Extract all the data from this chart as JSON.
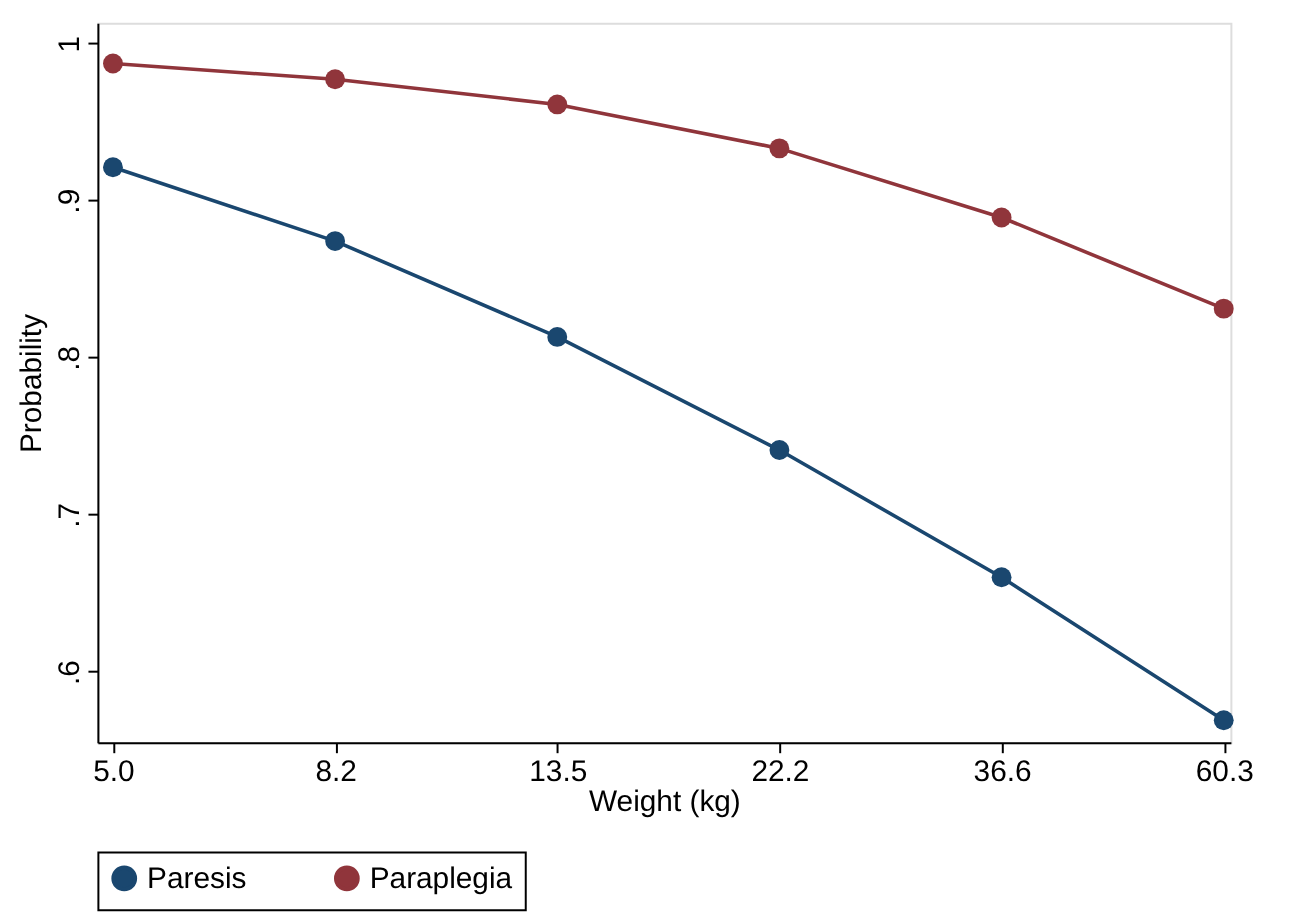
{
  "chart_data": {
    "type": "line",
    "xlabel": "Weight (kg)",
    "ylabel": "Probability",
    "categories": [
      "5.0",
      "8.2",
      "13.5",
      "22.2",
      "36.6",
      "60.3"
    ],
    "series": [
      {
        "name": "Paresis",
        "color": "#1a476f",
        "values": [
          0.921,
          0.874,
          0.813,
          0.741,
          0.66,
          0.569
        ]
      },
      {
        "name": "Paraplegia",
        "color": "#90353b",
        "values": [
          0.987,
          0.977,
          0.961,
          0.933,
          0.889,
          0.831
        ]
      }
    ],
    "ylim": [
      0.555,
      1.013
    ],
    "yticks": [
      {
        "value": 0.6,
        "label": ".6"
      },
      {
        "value": 0.7,
        "label": ".7"
      },
      {
        "value": 0.8,
        "label": ".8"
      },
      {
        "value": 0.9,
        "label": ".9"
      },
      1
    ],
    "grid": false,
    "legend": "bottom",
    "marker": "circle",
    "line_style": "solid"
  }
}
